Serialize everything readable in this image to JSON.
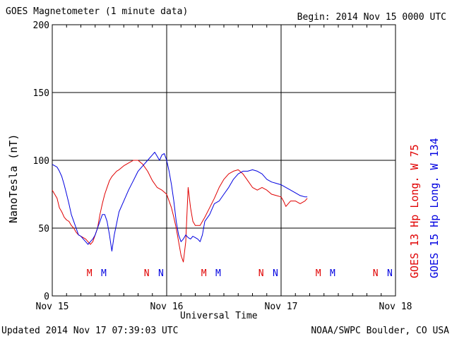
{
  "header": {
    "title": "GOES Magnetometer (1 minute data)",
    "begin": "Begin:  2014 Nov 15 0000 UTC"
  },
  "footer": {
    "updated": "Updated 2014 Nov 17 07:39:03 UTC",
    "credit": "NOAA/SWPC Boulder, CO USA"
  },
  "colors": {
    "goes13": "#e00000",
    "goes15": "#0000e0",
    "grid": "#000000"
  },
  "chart_data": {
    "type": "line",
    "title": "GOES Magnetometer (1 minute data)",
    "xlabel": "Universal Time",
    "ylabel": "NanoTesla (nT)",
    "xlim": [
      0,
      72
    ],
    "ylim": [
      0,
      200
    ],
    "x_ticks": [
      {
        "x": 0,
        "label": "Nov 15"
      },
      {
        "x": 24,
        "label": "Nov 16"
      },
      {
        "x": 48,
        "label": "Nov 17"
      },
      {
        "x": 72,
        "label": "Nov 18"
      }
    ],
    "y_ticks": [
      0,
      50,
      100,
      150,
      200
    ],
    "grid": true,
    "noon_midnight_markers": [
      {
        "x": 7.8,
        "label": "M",
        "series": "GOES 13"
      },
      {
        "x": 10.8,
        "label": "M",
        "series": "GOES 15"
      },
      {
        "x": 19.8,
        "label": "N",
        "series": "GOES 13"
      },
      {
        "x": 22.8,
        "label": "N",
        "series": "GOES 15"
      },
      {
        "x": 31.8,
        "label": "M",
        "series": "GOES 13"
      },
      {
        "x": 34.8,
        "label": "M",
        "series": "GOES 15"
      },
      {
        "x": 43.8,
        "label": "N",
        "series": "GOES 13"
      },
      {
        "x": 46.8,
        "label": "N",
        "series": "GOES 15"
      },
      {
        "x": 55.8,
        "label": "M",
        "series": "GOES 13"
      },
      {
        "x": 58.8,
        "label": "M",
        "series": "GOES 15"
      },
      {
        "x": 67.8,
        "label": "N",
        "series": "GOES 13"
      },
      {
        "x": 70.8,
        "label": "N",
        "series": "GOES 15"
      }
    ],
    "series": [
      {
        "name": "GOES 13 Hp",
        "legend": "GOES 13 Hp  Long. W 75",
        "color": "#e00000",
        "x": [
          0,
          0.5,
          1,
          1.5,
          2,
          2.5,
          3,
          3.5,
          4,
          4.5,
          5,
          5.5,
          6,
          6.5,
          7,
          7.5,
          8,
          8.5,
          9,
          9.5,
          10,
          10.5,
          11,
          11.5,
          12,
          12.5,
          13,
          13.5,
          14,
          15,
          16,
          17,
          18,
          19,
          20,
          21,
          22,
          23,
          24,
          24.5,
          25,
          25.5,
          26,
          26.5,
          27,
          27.5,
          28,
          28.5,
          29,
          29.5,
          30,
          31,
          32,
          33,
          34,
          35,
          36,
          37,
          38,
          39,
          40,
          41,
          42,
          43,
          44,
          45,
          46,
          47,
          48,
          48.5,
          49,
          49.5,
          50,
          51,
          52,
          53,
          53.5
        ],
        "values": [
          78,
          75,
          72,
          65,
          62,
          58,
          56,
          55,
          52,
          50,
          47,
          45,
          44,
          43,
          42,
          40,
          38,
          40,
          45,
          50,
          60,
          68,
          75,
          80,
          85,
          88,
          90,
          92,
          93,
          96,
          98,
          100,
          100,
          97,
          92,
          85,
          80,
          78,
          75,
          70,
          65,
          58,
          50,
          40,
          30,
          25,
          40,
          80,
          65,
          55,
          52,
          52,
          58,
          65,
          72,
          80,
          86,
          90,
          92,
          93,
          90,
          85,
          80,
          78,
          80,
          78,
          75,
          74,
          73,
          70,
          66,
          68,
          70,
          70,
          68,
          70,
          72
        ]
      },
      {
        "name": "GOES 15 Hp",
        "legend": "GOES 15 Hp  Long. W 134",
        "color": "#0000e0",
        "x": [
          0,
          0.5,
          1,
          1.5,
          2,
          2.5,
          3,
          3.5,
          4,
          4.5,
          5,
          5.5,
          6,
          6.5,
          7,
          7.5,
          8,
          8.5,
          9,
          9.5,
          10,
          10.5,
          11,
          11.5,
          12,
          12.5,
          13,
          14,
          15,
          16,
          17,
          18,
          19,
          20,
          21,
          21.5,
          22,
          22.5,
          23,
          23.5,
          24,
          24.5,
          25,
          25.5,
          26,
          26.5,
          27,
          27.5,
          28,
          28.5,
          29,
          29.5,
          30,
          30.5,
          31,
          31.5,
          32,
          33,
          34,
          35,
          36,
          37,
          38,
          39,
          40,
          41,
          42,
          43,
          44,
          45,
          46,
          47,
          48,
          49,
          50,
          51,
          52,
          53,
          53.5
        ],
        "values": [
          97,
          96,
          95,
          92,
          88,
          82,
          75,
          68,
          60,
          55,
          50,
          45,
          44,
          42,
          40,
          38,
          40,
          42,
          45,
          50,
          55,
          60,
          60,
          55,
          45,
          33,
          45,
          62,
          70,
          78,
          85,
          92,
          96,
          100,
          104,
          106,
          103,
          100,
          104,
          105,
          100,
          92,
          82,
          70,
          55,
          45,
          40,
          42,
          45,
          43,
          42,
          44,
          43,
          42,
          40,
          45,
          55,
          60,
          68,
          70,
          75,
          80,
          86,
          90,
          92,
          92,
          93,
          92,
          90,
          86,
          84,
          83,
          82,
          80,
          78,
          76,
          74,
          73,
          73
        ]
      }
    ]
  }
}
